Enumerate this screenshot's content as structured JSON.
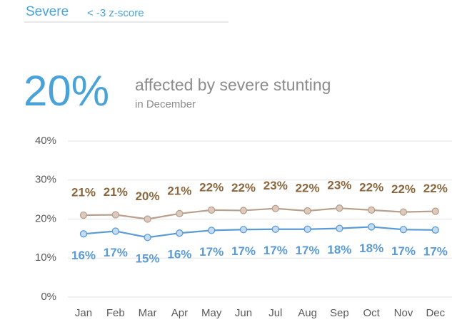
{
  "header": {
    "title": "Severe",
    "subtitle": "< -3 z-score"
  },
  "summary": {
    "value": "20%",
    "label": "affected by severe stunting",
    "sublabel": "in December"
  },
  "chart_data": {
    "type": "line",
    "categories": [
      "Jan",
      "Feb",
      "Mar",
      "Apr",
      "May",
      "Jun",
      "Jul",
      "Aug",
      "Sep",
      "Oct",
      "Nov",
      "Dec"
    ],
    "series": [
      {
        "color": "#b9a08e",
        "label_color": "#8a673d",
        "marker_fill": "#dccbbd",
        "values": [
          21.0,
          21.1,
          20.0,
          21.4,
          22.3,
          22.2,
          22.7,
          22.1,
          22.8,
          22.3,
          21.8,
          22.0
        ],
        "value_labels": [
          "21%",
          "21%",
          "20%",
          "21%",
          "22%",
          "22%",
          "23%",
          "22%",
          "23%",
          "22%",
          "22%",
          "22%"
        ]
      },
      {
        "color": "#5b9bd5",
        "label_color": "#5b9bd5",
        "marker_fill": "#c5dcf0",
        "values": [
          16.2,
          16.9,
          15.3,
          16.4,
          17.1,
          17.3,
          17.4,
          17.4,
          17.6,
          18.0,
          17.3,
          17.2
        ],
        "value_labels": [
          "16%",
          "17%",
          "15%",
          "16%",
          "17%",
          "17%",
          "17%",
          "17%",
          "18%",
          "18%",
          "17%",
          "17%"
        ]
      }
    ],
    "ylim": [
      0,
      40
    ],
    "yticks": [
      {
        "value": 0,
        "label": "0%"
      },
      {
        "value": 10,
        "label": "10%"
      },
      {
        "value": 20,
        "label": "20%"
      },
      {
        "value": 30,
        "label": "30%"
      },
      {
        "value": 40,
        "label": "40%"
      }
    ],
    "grid": true
  }
}
